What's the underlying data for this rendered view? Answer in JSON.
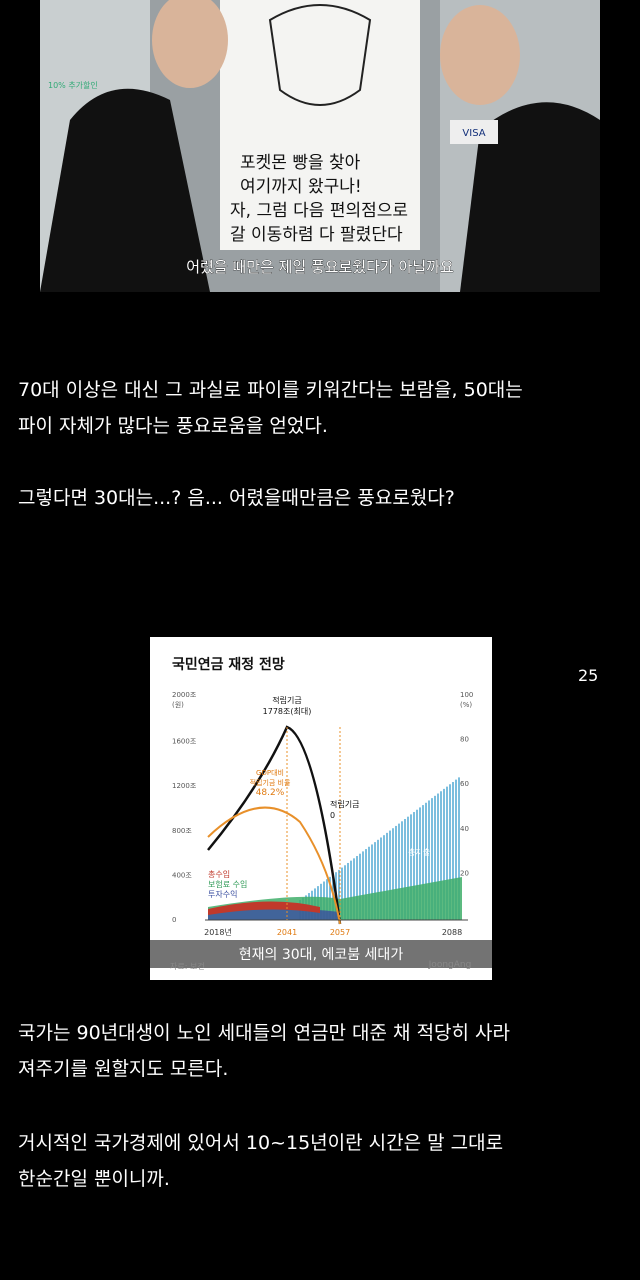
{
  "photo": {
    "sign_lines": [
      "포켓몬 빵을 찾아",
      "여기까지 왔구나!",
      "자, 그럼 다음 편의점으로",
      "갈 이동하렴 다 팔렸단다"
    ],
    "shelf_tag": "10% 추가할인",
    "card_logo": "VISA",
    "caption": "어렸을 때만은 제일 풍요로웠다가 아닐까요"
  },
  "paragraphs": [
    [
      "70대 이상은 대신 그 과실로 파이를 키워간다는 보람을, 50대는",
      "파이 자체가 많다는 풍요로움을 얻었다."
    ],
    [
      "그렇다면 30대는...? 음... 어렸을때만큼은 풍요로웠다?"
    ]
  ],
  "figure": {
    "title": "국민연금 재정 전망",
    "left_unit": "(원)",
    "left_ticks": [
      "2000조",
      "1600조",
      "1200조",
      "800조",
      "400조",
      "0"
    ],
    "right_unit": "(%)",
    "right_ticks": [
      "100",
      "80",
      "60",
      "40",
      "20"
    ],
    "peak_label": [
      "적립기금",
      "1778조(최대)"
    ],
    "ratio_label": [
      "GDP대비",
      "적립기금 비율",
      "48.2%"
    ],
    "zero_label": [
      "적립기금",
      "0"
    ],
    "expense_label": "총지출",
    "income_labels": [
      "총수입",
      "보험료 수입",
      "투자수익"
    ],
    "x_labels": [
      "2018년",
      "2041",
      "2057",
      "2088"
    ],
    "subtitle": "현재의 30대, 에코붐 세대가",
    "source": "자료: 보건",
    "credit": "JoongAng"
  },
  "page_number": "25",
  "paragraphs_after": [
    [
      "국가는 90년대생이 노인 세대들의 연금만 대준 채 적당히 사라",
      "져주기를 원할지도 모른다."
    ],
    [
      "거시적인 국가경제에 있어서 10~15년이란 시간은 말 그대로",
      "한순간일 뿐이니까."
    ]
  ]
}
